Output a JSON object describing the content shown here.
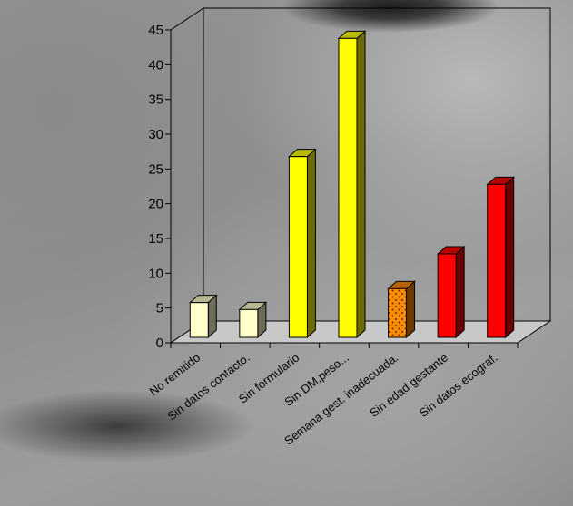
{
  "chart_data": {
    "type": "bar",
    "title": "",
    "xlabel": "",
    "ylabel": "",
    "categories": [
      "No remitido",
      "Sin datos contacto.",
      "Sin formulario",
      "Sin DM,peso...",
      "Semana gest. inadecuada.",
      "Sin edad gestante",
      "Sin datos ecograf."
    ],
    "values": [
      5,
      4,
      26,
      43,
      7,
      12,
      22
    ],
    "bar_colors": [
      "#ffffcc",
      "#ffffcc",
      "#ffff00",
      "#ffff00",
      "#ff8c00",
      "#ff0000",
      "#ff0000"
    ],
    "bar_patterns": [
      "solid",
      "solid",
      "solid",
      "solid",
      "dotted",
      "solid",
      "solid"
    ],
    "yticks": [
      "0",
      "5",
      "10",
      "15",
      "20",
      "25",
      "30",
      "35",
      "40",
      "45"
    ],
    "ylim": [
      0,
      45
    ],
    "style": "3d-column",
    "grid": false,
    "legend": "none"
  }
}
